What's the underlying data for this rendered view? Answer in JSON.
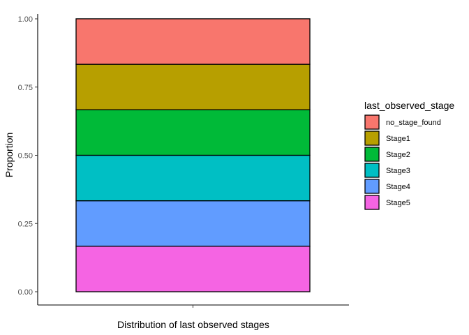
{
  "chart_data": {
    "type": "bar",
    "stacked": true,
    "position": "fill",
    "categories": [
      ""
    ],
    "xlabel": "Distribution of last observed stages",
    "ylabel": "Proportion",
    "ylim": [
      0,
      1
    ],
    "yticks": [
      0,
      0.25,
      0.5,
      0.75,
      1
    ],
    "ytick_labels": [
      "0.00",
      "0.25",
      "0.50",
      "0.75",
      "1.00"
    ],
    "grid": false,
    "legend": {
      "title": "last_observed_stage",
      "placement": "right"
    },
    "series": [
      {
        "name": "no_stage_found",
        "values": [
          0.1667
        ],
        "color": "#F8766D"
      },
      {
        "name": "Stage1",
        "values": [
          0.1667
        ],
        "color": "#B79F00"
      },
      {
        "name": "Stage2",
        "values": [
          0.1667
        ],
        "color": "#00BA38"
      },
      {
        "name": "Stage3",
        "values": [
          0.1667
        ],
        "color": "#00BFC4"
      },
      {
        "name": "Stage4",
        "values": [
          0.1667
        ],
        "color": "#619CFF"
      },
      {
        "name": "Stage5",
        "values": [
          0.1667
        ],
        "color": "#F564E3"
      }
    ]
  }
}
